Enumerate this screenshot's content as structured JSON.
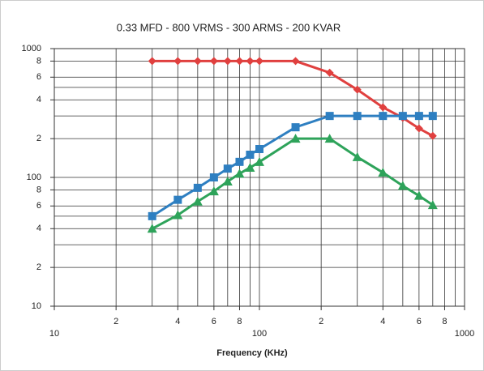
{
  "chart_data": {
    "type": "line",
    "title": "0.33 MFD - 800 VRMS - 300 ARMS - 200 KVAR",
    "x_label": "Frequency (KHz)",
    "x_log": true,
    "y_log": true,
    "grid": true,
    "x": [
      30,
      40,
      50,
      60,
      70,
      80,
      90,
      100,
      150,
      220,
      300,
      400,
      500,
      600,
      700
    ],
    "series": [
      {
        "color": "#e0403f",
        "marker": "diamond",
        "values": [
          800,
          800,
          800,
          800,
          800,
          800,
          800,
          800,
          800,
          650,
          480,
          350,
          290,
          240,
          210
        ]
      },
      {
        "color": "#2e7fc1",
        "marker": "square",
        "values": [
          50,
          67,
          83,
          100,
          117,
          132,
          150,
          166,
          245,
          300,
          300,
          300,
          300,
          300,
          300
        ]
      },
      {
        "color": "#2ea35a",
        "marker": "triangle",
        "values": [
          40,
          51,
          65,
          78,
          93,
          107,
          119,
          132,
          200,
          200,
          144,
          109,
          86,
          72,
          61
        ]
      }
    ],
    "xlim": [
      10,
      1000
    ],
    "ylim": [
      10,
      1000
    ],
    "xticks": [
      10,
      {
        "value": 20,
        "label": "2"
      },
      {
        "value": 40,
        "label": "4"
      },
      {
        "value": 60,
        "label": "6"
      },
      {
        "value": 80,
        "label": "8"
      },
      100,
      {
        "value": 200,
        "label": "2"
      },
      {
        "value": 400,
        "label": "4"
      },
      {
        "value": 600,
        "label": "6"
      },
      {
        "value": 800,
        "label": "8"
      },
      1000
    ],
    "yticks": [
      10,
      {
        "value": 20,
        "label": "2"
      },
      {
        "value": 40,
        "label": "4"
      },
      {
        "value": 60,
        "label": "6"
      },
      {
        "value": 80,
        "label": "8"
      },
      100,
      {
        "value": 200,
        "label": "2"
      },
      {
        "value": 400,
        "label": "4"
      },
      {
        "value": 600,
        "label": "6"
      },
      {
        "value": 800,
        "label": "8"
      },
      1000
    ],
    "x_minor_grid": [
      30,
      50,
      70,
      90,
      300,
      500,
      700,
      900
    ],
    "y_minor_grid": [
      30,
      50,
      300,
      500
    ]
  }
}
